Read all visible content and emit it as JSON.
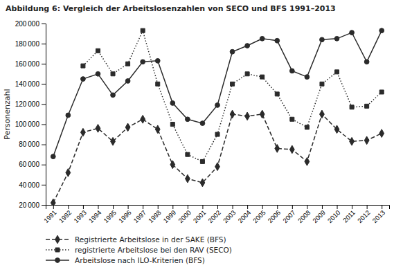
{
  "chart_data": {
    "type": "line",
    "title": "Abbildung 6: Vergleich der Arbeitslosenzahlen von SECO und BFS 1991–2013",
    "ylabel": "Personenzahl",
    "x": [
      1991,
      1992,
      1993,
      1994,
      1995,
      1996,
      1997,
      1998,
      1999,
      2000,
      2001,
      2002,
      2003,
      2004,
      2005,
      2006,
      2007,
      2008,
      2009,
      2010,
      2011,
      2012,
      2013
    ],
    "xlim": [
      1990.5,
      2013.5
    ],
    "xticks": [
      1991,
      1992,
      1993,
      1994,
      1995,
      1996,
      1997,
      1998,
      1999,
      2000,
      2001,
      2002,
      2003,
      2004,
      2005,
      2006,
      2007,
      2008,
      2009,
      2010,
      2011,
      2012,
      2013
    ],
    "ylim": [
      20000,
      200000
    ],
    "yticks": [
      {
        "value": 20000,
        "label": "20 000"
      },
      {
        "value": 40000,
        "label": "40 000"
      },
      {
        "value": 60000,
        "label": "60 000"
      },
      {
        "value": 80000,
        "label": "80 000"
      },
      {
        "value": 100000,
        "label": "100 000"
      },
      {
        "value": 120000,
        "label": "120 000"
      },
      {
        "value": 140000,
        "label": "140 000"
      },
      {
        "value": 160000,
        "label": "160 000"
      },
      {
        "value": 180000,
        "label": "180 000"
      },
      {
        "value": 200000,
        "label": "200 000"
      }
    ],
    "grid": false,
    "legend": "bottom",
    "series": [
      {
        "name": "Registrierte Arbeitslose in der SAKE (BFS)",
        "color": "#2b2b2b",
        "marker": "diamond",
        "line_style": "dashed",
        "values": [
          22000,
          52000,
          92000,
          96000,
          83000,
          97000,
          105000,
          95000,
          60000,
          46000,
          42000,
          58000,
          110000,
          108000,
          110000,
          76000,
          75000,
          63000,
          110000,
          95000,
          83000,
          84000,
          91000
        ]
      },
      {
        "name": "registrierte Arbeitslose bei den RAV (SECO)",
        "color": "#2b2b2b",
        "marker": "square",
        "line_style": "dotted",
        "values": [
          null,
          null,
          158000,
          173000,
          150000,
          160000,
          193000,
          140000,
          100000,
          70000,
          63000,
          90000,
          140000,
          150000,
          147000,
          130000,
          105000,
          97000,
          140000,
          152000,
          117000,
          118000,
          132000
        ]
      },
      {
        "name": "Arbeitslose nach ILO-Kriterien (BFS)",
        "color": "#2b2b2b",
        "marker": "circle",
        "line_style": "solid",
        "values": [
          68000,
          109000,
          145000,
          150000,
          129000,
          143000,
          162000,
          163000,
          121000,
          105000,
          101000,
          119000,
          172000,
          178000,
          185000,
          183000,
          153000,
          147000,
          184000,
          185000,
          191000,
          162000,
          193000
        ]
      }
    ]
  }
}
